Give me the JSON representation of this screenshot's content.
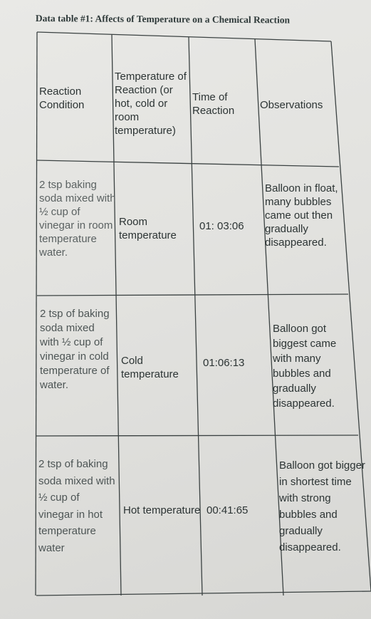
{
  "title": "Data table #1: Affects of Temperature on a Chemical Reaction",
  "table": {
    "headers": [
      "Reaction Condition",
      "Temperature of Reaction (or hot, cold or room temperature)",
      "Time of Reaction",
      "Observations"
    ],
    "rows": [
      {
        "condition": "2 tsp baking soda mixed with ½ cup of vinegar in room temperature water.",
        "temperature": "Room temperature",
        "time": "01: 03:06",
        "observations": "Balloon in float, many bubbles came out then gradually disappeared."
      },
      {
        "condition": "2 tsp of baking soda mixed with ½ cup of vinegar in cold temperature of water.",
        "temperature": "Cold temperature",
        "time": "01:06:13",
        "observations": "Balloon got biggest came with many bubbles and gradually disappeared."
      },
      {
        "condition": "2 tsp of baking soda mixed with ½ cup of vinegar in hot temperature water",
        "temperature": "Hot temperature",
        "time": "00:41:65",
        "observations": "Balloon got bigger in shortest time with strong bubbles and gradually disappeared."
      }
    ]
  }
}
